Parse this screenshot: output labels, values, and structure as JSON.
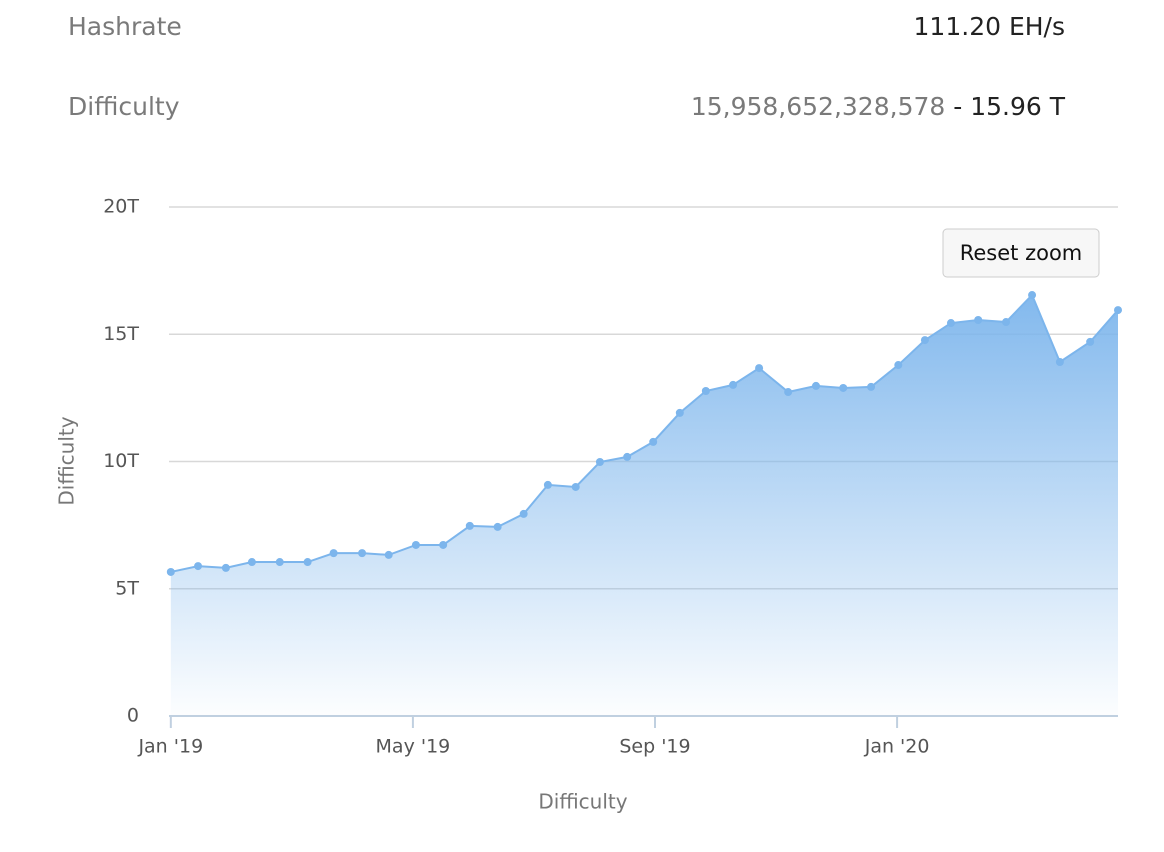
{
  "header": {
    "rows": [
      {
        "label": "Hashrate",
        "value": "111.20 EH/s"
      },
      {
        "label": "Difficulty",
        "value": "15,958,652,328,578",
        "suffix": "- 15.96 T"
      }
    ]
  },
  "reset_button": "Reset zoom",
  "chart_data": {
    "type": "area",
    "y_label": "Difficulty",
    "x_label": "Difficulty",
    "color": "#7cb5ec",
    "x": [
      0,
      0.45,
      0.91,
      1.34,
      1.8,
      2.26,
      2.69,
      3.16,
      3.6,
      4.05,
      4.5,
      4.94,
      5.4,
      5.83,
      6.23,
      6.69,
      7.09,
      7.54,
      7.97,
      8.41,
      8.84,
      9.29,
      9.72,
      10.2,
      10.66,
      11.11,
      11.57,
      12.02,
      12.46,
      12.89,
      13.34,
      13.8,
      14.23,
      14.69,
      15.19,
      15.65
    ],
    "values": [
      5.66,
      5.89,
      5.82,
      6.05,
      6.05,
      6.05,
      6.4,
      6.4,
      6.33,
      6.72,
      6.72,
      7.47,
      7.43,
      7.94,
      9.08,
      9.0,
      9.98,
      10.18,
      10.77,
      11.91,
      12.77,
      13.01,
      13.67,
      12.73,
      12.97,
      12.89,
      12.93,
      13.79,
      14.77,
      15.44,
      15.56,
      15.48,
      16.54,
      13.91,
      14.7,
      15.95
    ],
    "xlim": [
      -0.03,
      15.65
    ],
    "xticks": [
      {
        "value": 0,
        "label": "Jan '19"
      },
      {
        "value": 4,
        "label": "May '19"
      },
      {
        "value": 8,
        "label": "Sep '19"
      },
      {
        "value": 12,
        "label": "Jan '20"
      }
    ],
    "ylim": [
      0,
      20
    ],
    "yticks": [
      0,
      {
        "value": 5,
        "label": "5T"
      },
      {
        "value": 10,
        "label": "10T"
      },
      {
        "value": 15,
        "label": "15T"
      },
      {
        "value": 20,
        "label": "20T"
      }
    ],
    "grid": true
  }
}
